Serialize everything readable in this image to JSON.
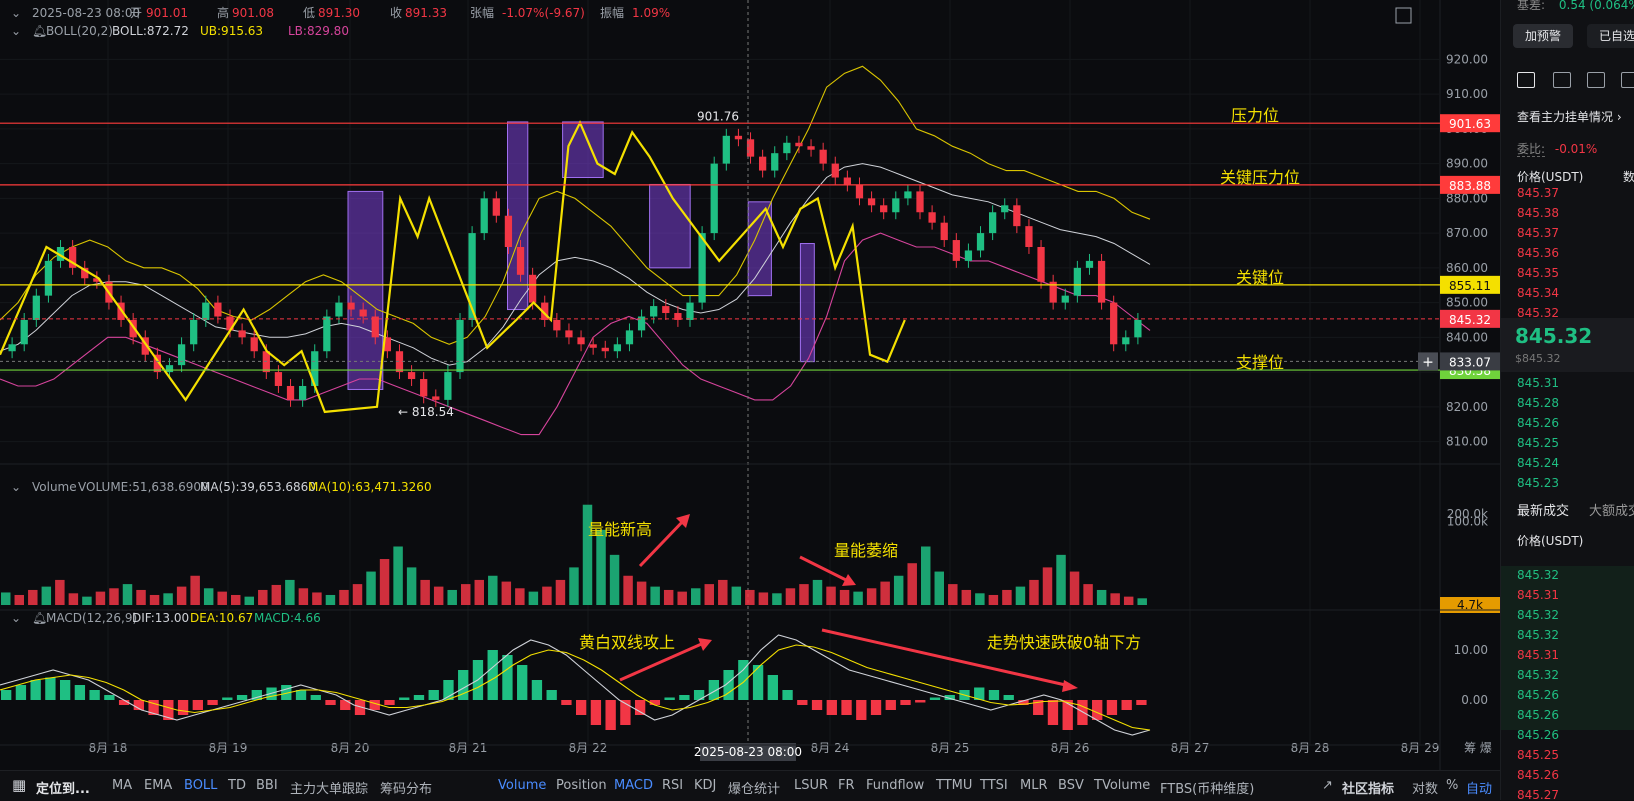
{
  "header": {
    "datetime": "2025-08-23 08:00",
    "open_label": "开",
    "open": "901.01",
    "high_label": "高",
    "high": "901.08",
    "low_label": "低",
    "low": "891.30",
    "close_label": "收",
    "close": "891.33",
    "change_label": "张幅",
    "change": "-1.07%(-9.67)",
    "amp_label": "振幅",
    "amp": "1.09%",
    "boll_label": "BOLL(20,2)",
    "boll": "BOLL:872.72",
    "ub": "UB:915.63",
    "lb": "LB:829.80",
    "vol_label": "Volume",
    "vol": "VOLUME:51,638.6900",
    "ma5": "MA(5):39,653.6860",
    "ma10": "MA(10):63,471.3260",
    "macd_label": "MACD(12,26,9)",
    "dif": "DIF:13.00",
    "dea": "DEA:10.67",
    "macd": "MACD:4.66"
  },
  "chart_data": {
    "type": "candlestick",
    "price_axis": {
      "ticks": [
        "920.00",
        "910.00",
        "900.00",
        "890.00",
        "880.00",
        "870.00",
        "860.00",
        "850.00",
        "840.00",
        "830.00",
        "820.00",
        "810.00"
      ],
      "ylim": [
        807,
        925
      ]
    },
    "volume_axis": {
      "ticks": [
        "200.0k",
        "100.0k"
      ],
      "current": "4.7k"
    },
    "macd_axis": {
      "ticks": [
        "10.00",
        "0.00"
      ]
    },
    "x_ticks": [
      "8月 18",
      "8月 19",
      "8月 20",
      "8月 21",
      "8月 22",
      "2025-08-23 08:00",
      "8月 24",
      "8月 25",
      "8月 26",
      "8月 27",
      "8月 28",
      "8月 29"
    ],
    "x_tail": "筹 爆",
    "crosshair_label": "2025-08-23 08:00",
    "high_marker": "901.76",
    "low_marker": "← 818.54",
    "current_price": "845.32",
    "crosshair_price": "833.07",
    "levels": [
      {
        "name": "压力位",
        "price": 901.63,
        "label": "901.63",
        "color": "#ff3b3b"
      },
      {
        "name": "关键压力位",
        "price": 883.88,
        "label": "883.88",
        "color": "#ff3b3b"
      },
      {
        "name": "关键位",
        "price": 855.11,
        "label": "855.11",
        "color": "#f4e000"
      },
      {
        "name": "支撑位",
        "price": 830.58,
        "label": "830.58",
        "color": "#6fd33b"
      }
    ],
    "annotations": [
      "量能新高",
      "量能萎缩",
      "黄白双线攻上",
      "走势快速跌破0轴下方"
    ],
    "zigzag": [
      [
        0,
        835
      ],
      [
        0.04,
        866
      ],
      [
        0.085,
        857
      ],
      [
        0.16,
        822
      ],
      [
        0.21,
        848
      ],
      [
        0.23,
        836
      ],
      [
        0.245,
        832
      ],
      [
        0.26,
        836
      ],
      [
        0.28,
        818.54
      ],
      [
        0.325,
        820
      ],
      [
        0.345,
        880
      ],
      [
        0.36,
        869
      ],
      [
        0.37,
        880
      ],
      [
        0.42,
        837
      ],
      [
        0.445,
        845
      ],
      [
        0.46,
        850
      ],
      [
        0.475,
        845
      ],
      [
        0.49,
        895
      ],
      [
        0.5,
        901.76
      ],
      [
        0.515,
        890
      ],
      [
        0.53,
        887
      ],
      [
        0.545,
        899
      ],
      [
        0.56,
        892
      ],
      [
        0.58,
        880
      ],
      [
        0.62,
        862
      ],
      [
        0.66,
        877
      ],
      [
        0.675,
        866
      ],
      [
        0.69,
        877
      ],
      [
        0.705,
        880
      ],
      [
        0.72,
        860
      ],
      [
        0.735,
        872
      ],
      [
        0.75,
        835
      ],
      [
        0.765,
        833
      ],
      [
        0.78,
        845
      ]
    ],
    "close_series": [
      836,
      838,
      845,
      852,
      862,
      866,
      860,
      857,
      856,
      850,
      845,
      840,
      835,
      830,
      832,
      838,
      845,
      850,
      846,
      842,
      840,
      836,
      830,
      826,
      822,
      826,
      836,
      846,
      850,
      848,
      846,
      840,
      836,
      830,
      828,
      823,
      822,
      830,
      845,
      870,
      880,
      875,
      866,
      858,
      850,
      845,
      842,
      840,
      838,
      837,
      836,
      838,
      842,
      846,
      849,
      847,
      845,
      850,
      870,
      890,
      898,
      897,
      892,
      888,
      893,
      896,
      895,
      894,
      890,
      886,
      884,
      880,
      878,
      876,
      880,
      882,
      876,
      873,
      868,
      862,
      865,
      870,
      876,
      878,
      872,
      866,
      856,
      850,
      852,
      860,
      862,
      850,
      838,
      840,
      845
    ],
    "boll_upper": [
      845,
      850,
      858,
      863,
      866,
      868,
      866,
      862,
      860,
      860,
      858,
      854,
      848,
      846,
      845,
      848,
      852,
      856,
      858,
      856,
      852,
      848,
      846,
      844,
      840,
      838,
      840,
      846,
      856,
      870,
      880,
      882,
      880,
      876,
      872,
      866,
      860,
      856,
      852,
      852,
      852,
      858,
      868,
      880,
      890,
      900,
      912,
      916,
      918,
      914,
      908,
      900,
      898,
      895,
      893,
      890,
      888,
      888,
      886,
      884,
      882,
      882,
      880,
      876,
      874
    ],
    "boll_mid": [
      836,
      838,
      842,
      847,
      852,
      855,
      856,
      856,
      855,
      852,
      849,
      846,
      843,
      842,
      841,
      840,
      840,
      841,
      843,
      844,
      843,
      841,
      839,
      837,
      834,
      832,
      833,
      837,
      843,
      851,
      858,
      862,
      863,
      862,
      860,
      857,
      853,
      850,
      848,
      847,
      848,
      851,
      857,
      865,
      873,
      880,
      886,
      889,
      890,
      889,
      887,
      885,
      883,
      881,
      880,
      879,
      877,
      875,
      873,
      871,
      870,
      869,
      867,
      864,
      861
    ],
    "boll_lower": [
      828,
      826,
      826,
      828,
      832,
      836,
      840,
      840,
      838,
      836,
      834,
      832,
      830,
      828,
      826,
      824,
      822,
      822,
      824,
      826,
      828,
      828,
      826,
      824,
      822,
      820,
      818,
      816,
      814,
      812,
      812,
      820,
      830,
      840,
      844,
      846,
      844,
      838,
      832,
      828,
      826,
      824,
      822,
      822,
      826,
      834,
      846,
      862,
      868,
      870,
      868,
      866,
      866,
      864,
      862,
      862,
      860,
      858,
      856,
      854,
      852,
      852,
      850,
      846,
      842
    ],
    "volume": [
      15,
      12,
      18,
      22,
      30,
      14,
      10,
      16,
      20,
      25,
      18,
      12,
      14,
      22,
      35,
      20,
      16,
      12,
      10,
      18,
      24,
      30,
      20,
      15,
      12,
      18,
      25,
      40,
      55,
      70,
      45,
      30,
      22,
      18,
      25,
      30,
      35,
      28,
      20,
      16,
      22,
      30,
      45,
      120,
      90,
      60,
      35,
      28,
      22,
      18,
      16,
      20,
      25,
      30,
      22,
      18,
      15,
      14,
      20,
      25,
      30,
      22,
      18,
      16,
      20,
      28,
      35,
      50,
      70,
      40,
      25,
      18,
      14,
      12,
      18,
      22,
      30,
      45,
      60,
      40,
      25,
      18,
      14,
      10,
      8
    ],
    "macd_hist": [
      2,
      3,
      4,
      4.5,
      4,
      3,
      2,
      1,
      -1,
      -2,
      -3,
      -4,
      -3,
      -2,
      -1,
      0.5,
      1,
      2,
      2.5,
      3,
      2,
      1,
      -1,
      -2,
      -3,
      -2,
      -1,
      0.5,
      1,
      2,
      4,
      6,
      8,
      10,
      9,
      7,
      4,
      2,
      -1,
      -3,
      -5,
      -6,
      -5,
      -3,
      -1,
      0.5,
      1,
      2,
      4,
      6,
      8,
      7,
      5,
      2,
      -1,
      -2,
      -3,
      -3,
      -4,
      -3,
      -2,
      -1,
      -0.5,
      0.5,
      1,
      2,
      2.5,
      2,
      1,
      -1,
      -3,
      -5,
      -6,
      -5,
      -4,
      -3,
      -2,
      -1
    ],
    "macd_dif": [
      3,
      4,
      5,
      6,
      5,
      4,
      2,
      0,
      -2,
      -3,
      -4,
      -3,
      -2,
      -1,
      0,
      1,
      2,
      3,
      2,
      1,
      -1,
      -2,
      -3,
      -2,
      -1,
      0,
      2,
      4,
      7,
      10,
      12,
      11,
      9,
      6,
      3,
      0,
      -2,
      -4,
      -3,
      -1,
      1,
      3,
      6,
      10,
      13,
      12,
      10,
      8,
      6,
      5,
      4,
      3,
      2,
      1,
      0,
      -1,
      -2,
      -1,
      0,
      1,
      0,
      -2,
      -4,
      -6,
      -7,
      -6
    ],
    "macd_dea": [
      2,
      3,
      4,
      4.5,
      5,
      4.5,
      3.5,
      2,
      0,
      -1,
      -2,
      -2.5,
      -2,
      -1.5,
      -0.5,
      0.5,
      1.2,
      2,
      2,
      1.5,
      0.5,
      -0.5,
      -1.5,
      -1.5,
      -1,
      -0.3,
      1,
      2.5,
      4.5,
      7,
      9,
      10,
      9.5,
      8,
      6,
      3.5,
      1,
      -1,
      -2,
      -1.5,
      -0.5,
      1,
      3.5,
      7,
      10,
      11,
      10.6,
      9.5,
      8,
      6.5,
      5.5,
      4.5,
      3.5,
      2.5,
      1.5,
      0.5,
      -0.5,
      -1,
      -0.8,
      -0.3,
      -0.2,
      -1,
      -2.5,
      -4,
      -5.5,
      -6
    ]
  },
  "sidebar": {
    "top_label": "基差:",
    "top_value": "0.54 (0.064%)",
    "btn_alert": "加预警",
    "btn_selected": "已自选",
    "orderbook_link": "查看主力挂单情况",
    "ratio_label": "委比:",
    "ratio_value": "-0.01%",
    "price_col": "价格(USDT)",
    "qty_col": "数",
    "asks": [
      "845.37",
      "845.38",
      "845.37",
      "845.36",
      "845.35",
      "845.34",
      "845.32"
    ],
    "last_price": "845.32",
    "last_price_sub": "$845.32",
    "bids": [
      "845.31",
      "845.28",
      "845.26",
      "845.25",
      "845.24",
      "845.23"
    ],
    "trades_tab": "最新成交",
    "big_trades_tab": "大额成交",
    "trades_price_col": "价格(USDT)",
    "trades": [
      {
        "p": "845.32",
        "c": "#1fbf83"
      },
      {
        "p": "845.31",
        "c": "#f23645"
      },
      {
        "p": "845.32",
        "c": "#1fbf83"
      },
      {
        "p": "845.32",
        "c": "#1fbf83"
      },
      {
        "p": "845.31",
        "c": "#f23645"
      },
      {
        "p": "845.32",
        "c": "#1fbf83"
      },
      {
        "p": "845.26",
        "c": "#1fbf83"
      },
      {
        "p": "845.26",
        "c": "#1fbf83"
      },
      {
        "p": "845.26",
        "c": "#1fbf83"
      },
      {
        "p": "845.25",
        "c": "#f23645"
      },
      {
        "p": "845.26",
        "c": "#f23645"
      },
      {
        "p": "845.27",
        "c": "#f23645"
      }
    ]
  },
  "bottombar": {
    "locate": "定位到...",
    "items": [
      "MA",
      "EMA",
      "BOLL",
      "TD",
      "BBI",
      "主力大单跟踪",
      "筹码分布"
    ],
    "items2": [
      "Volume",
      "Position",
      "MACD",
      "RSI",
      "KDJ",
      "爆仓统计",
      "LSUR",
      "FR",
      "Fundflow",
      "TTMU",
      "TTSI",
      "MLR",
      "BSV",
      "TVolume",
      "FTBS(币种维度)"
    ],
    "community": "社区指标",
    "log": "对数",
    "pct": "%",
    "auto": "自动"
  },
  "colors": {
    "up": "#1fbf83",
    "down": "#f23645",
    "yellow": "#f4e000",
    "white": "#cfd2d8",
    "magenta": "#d6449c",
    "purple": "#7b3fd6"
  }
}
